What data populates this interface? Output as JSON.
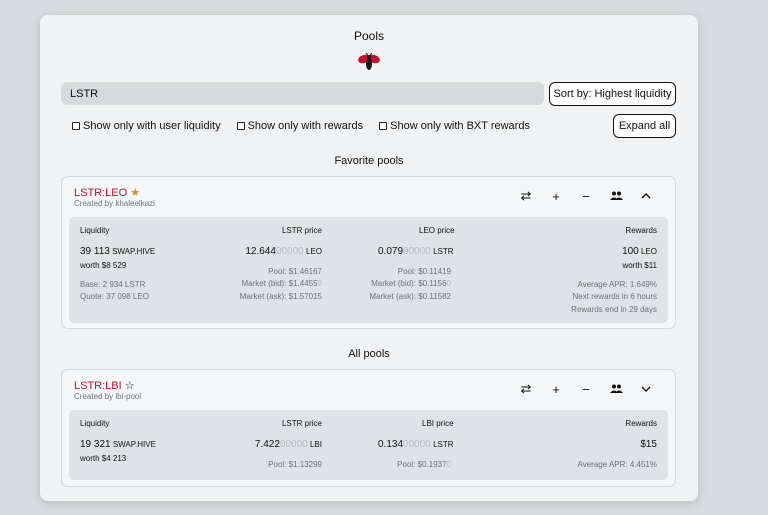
{
  "title": "Pools",
  "search": {
    "value": "LSTR"
  },
  "sort_label": "Sort by: Highest liquidity",
  "expand_label": "Expand all",
  "filters": [
    {
      "label": "Show only with user liquidity"
    },
    {
      "label": "Show only with rewards"
    },
    {
      "label": "Show only with BXT rewards"
    }
  ],
  "favorite_heading": "Favorite pools",
  "all_heading": "All pools",
  "favorite_pool": {
    "name": "LSTR:LEO",
    "created_by": "Created by khaleelkazi",
    "star_icon": "star-filled-icon",
    "liquidity_label": "Liquidity",
    "liquidity_value": "39 113",
    "liquidity_unit": "SWAP.HIVE",
    "liquidity_worth": "worth $8 529",
    "base": "Base: 2 934 LSTR",
    "quote": "Quote: 37 098 LEO",
    "price1_label": "LSTR price",
    "price1_main": "12.644",
    "price1_zeros": "00000",
    "price1_unit": "LEO",
    "price1_pool": "Pool: $1.46167",
    "price1_bid_main": "Market (bid): $1.4455",
    "price1_bid_zeros": "0",
    "price1_ask": "Market (ask): $1.57015",
    "price2_label": "LEO price",
    "price2_main": "0.079",
    "price2_zeros": "00000",
    "price2_unit": "LSTR",
    "price2_pool": "Pool: $0.11419",
    "price2_bid_main": "Market (bid): $0.1156",
    "price2_bid_zeros": "0",
    "price2_ask": "Market (ask): $0.11582",
    "rewards_label": "Rewards",
    "rewards_value": "100",
    "rewards_unit": "LEO",
    "rewards_worth": "worth $11",
    "apr": "Average APR: 1.649%",
    "next_rewards": "Next rewards in 6 hours",
    "rewards_end": "Rewards end in 29 days"
  },
  "all_pool": {
    "name": "LSTR:LBI",
    "created_by": "Created by lbi-pool",
    "star_icon": "star-outline-icon",
    "liquidity_label": "Liquidity",
    "liquidity_value": "19 321",
    "liquidity_unit": "SWAP.HIVE",
    "liquidity_worth": "worth $4 213",
    "price1_label": "LSTR price",
    "price1_main": "7.422",
    "price1_zeros": "00000",
    "price1_unit": "LBI",
    "price1_pool": "Pool: $1.13299",
    "price2_label": "LBI price",
    "price2_main": "0.134",
    "price2_zeros": "00000",
    "price2_unit": "LSTR",
    "price2_pool_main": "Pool: $0.1937",
    "price2_pool_zeros": "0",
    "rewards_label": "Rewards",
    "rewards_value": "$15",
    "apr": "Average APR: 4.451%"
  },
  "icons": [
    "swap-icon",
    "plus-icon",
    "minus-icon",
    "users-icon",
    "chevron-up-icon",
    "chevron-down-icon"
  ]
}
